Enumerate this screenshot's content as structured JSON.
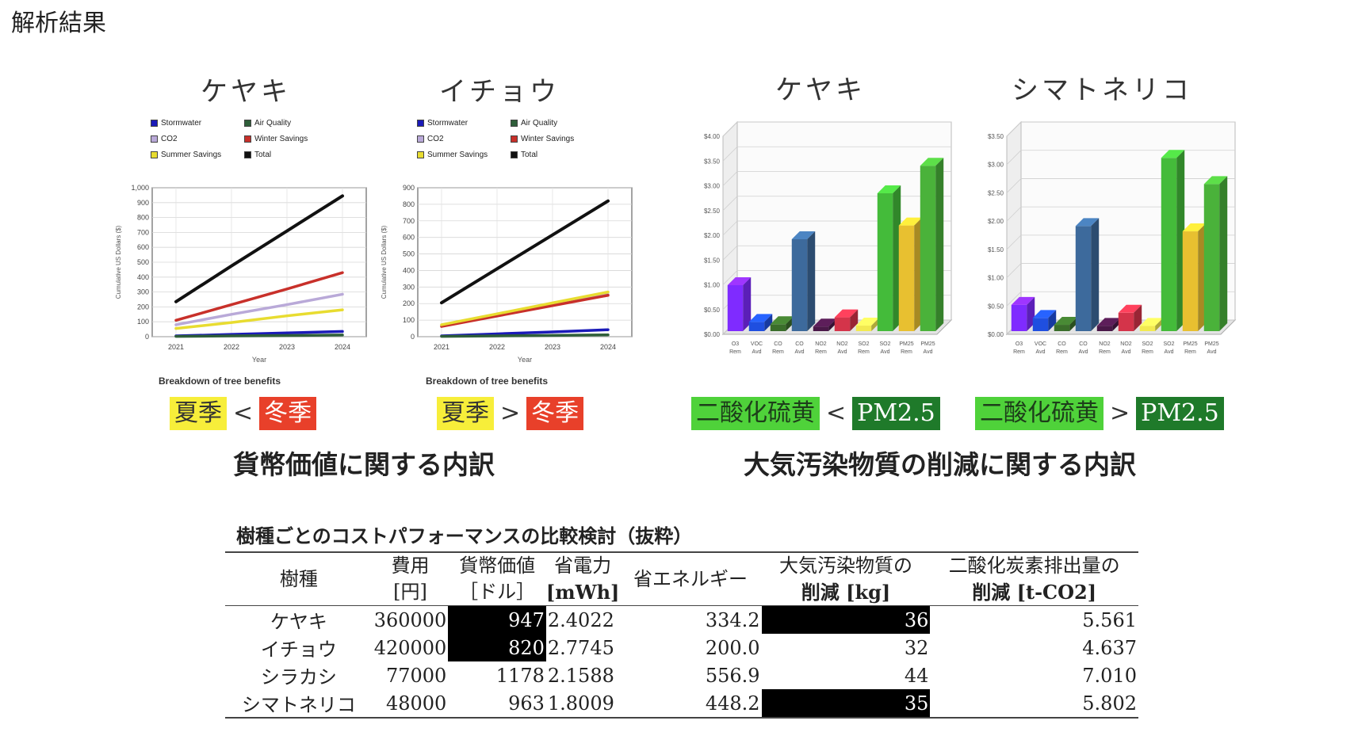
{
  "slide": {
    "title": "解析結果"
  },
  "line_legend": [
    {
      "label": "Stormwater",
      "color": "#1a1ab8"
    },
    {
      "label": "Air Quality",
      "color": "#2f5f3a"
    },
    {
      "label": "CO2",
      "color": "#b9a9d8"
    },
    {
      "label": "Winter Savings",
      "color": "#c8302a"
    },
    {
      "label": "Summer Savings",
      "color": "#e8dc30"
    },
    {
      "label": "Total",
      "color": "#111111"
    }
  ],
  "chart_data": [
    {
      "type": "line",
      "title": "ケヤキ",
      "xlabel": "Year",
      "ylabel": "Cumulative US Dollars ($)",
      "caption": "Breakdown of tree benefits",
      "x": [
        "2021",
        "2022",
        "2023",
        "2024"
      ],
      "ylim": [
        0,
        1000
      ],
      "yticks": [
        "0",
        "100",
        "200",
        "300",
        "400",
        "500",
        "600",
        "700",
        "800",
        "900",
        "1,000"
      ],
      "grid": true,
      "series": [
        {
          "name": "Stormwater",
          "color": "#1a1ab8",
          "values": [
            5,
            15,
            25,
            35
          ]
        },
        {
          "name": "Air Quality",
          "color": "#2f5f3a",
          "values": [
            2,
            5,
            8,
            11
          ]
        },
        {
          "name": "CO2",
          "color": "#b9a9d8",
          "values": [
            80,
            150,
            215,
            285
          ]
        },
        {
          "name": "Winter Savings",
          "color": "#c8302a",
          "values": [
            110,
            215,
            320,
            430
          ]
        },
        {
          "name": "Summer Savings",
          "color": "#e8dc30",
          "values": [
            55,
            95,
            140,
            180
          ]
        },
        {
          "name": "Total",
          "color": "#111111",
          "values": [
            235,
            475,
            710,
            945
          ]
        }
      ]
    },
    {
      "type": "line",
      "title": "イチョウ",
      "xlabel": "Year",
      "ylabel": "Cumulative US Dollars ($)",
      "caption": "Breakdown of tree benefits",
      "x": [
        "2021",
        "2022",
        "2023",
        "2024"
      ],
      "ylim": [
        0,
        900
      ],
      "yticks": [
        "0",
        "100",
        "200",
        "300",
        "400",
        "500",
        "600",
        "700",
        "800",
        "900"
      ],
      "grid": true,
      "series": [
        {
          "name": "Stormwater",
          "color": "#1a1ab8",
          "values": [
            5,
            17,
            29,
            42
          ]
        },
        {
          "name": "Air Quality",
          "color": "#2f5f3a",
          "values": [
            2,
            5,
            8,
            11
          ]
        },
        {
          "name": "CO2",
          "color": "#b9a9d8",
          "values": [
            65,
            130,
            195,
            255
          ]
        },
        {
          "name": "Winter Savings",
          "color": "#c8302a",
          "values": [
            62,
            125,
            188,
            250
          ]
        },
        {
          "name": "Summer Savings",
          "color": "#e8dc30",
          "values": [
            72,
            138,
            204,
            270
          ]
        },
        {
          "name": "Total",
          "color": "#111111",
          "values": [
            205,
            410,
            615,
            820
          ]
        }
      ]
    },
    {
      "type": "bar",
      "title": "ケヤキ",
      "categories": [
        "O3 Rem",
        "VOC Avd",
        "CO Rem",
        "CO Avd",
        "NO2 Rem",
        "NO2 Avd",
        "SO2 Rem",
        "SO2 Avd",
        "PM25 Rem",
        "PM25 Avd"
      ],
      "values": [
        1.0,
        0.2,
        0.15,
        2.0,
        0.1,
        0.3,
        0.12,
        3.0,
        2.3,
        3.6
      ],
      "colors": [
        "#7f2bff",
        "#1f4fe0",
        "#3a6e2a",
        "#3d6a9c",
        "#4a1848",
        "#d4344a",
        "#f2ea50",
        "#44bb3a",
        "#e8c030",
        "#4ab23a"
      ],
      "ylim": [
        0,
        4.0
      ],
      "yticks": [
        "$0.00",
        "$0.50",
        "$1.00",
        "$1.50",
        "$2.00",
        "$2.50",
        "$3.00",
        "$3.50",
        "$4.00"
      ]
    },
    {
      "type": "bar",
      "title": "シマトネリコ",
      "categories": [
        "O3 Rem",
        "VOC Avd",
        "CO Rem",
        "CO Avd",
        "NO2 Rem",
        "NO2 Avd",
        "SO2 Rem",
        "SO2 Avd",
        "PM25 Rem",
        "PM25 Avd"
      ],
      "values": [
        0.5,
        0.25,
        0.12,
        2.0,
        0.1,
        0.35,
        0.1,
        3.3,
        1.9,
        2.8
      ],
      "colors": [
        "#7f2bff",
        "#1f4fe0",
        "#3a6e2a",
        "#3d6a9c",
        "#4a1848",
        "#d4344a",
        "#f2ea50",
        "#44bb3a",
        "#e8c030",
        "#4ab23a"
      ],
      "ylim": [
        0,
        3.5
      ],
      "yticks": [
        "$0.00",
        "$0.50",
        "$1.00",
        "$1.50",
        "$2.00",
        "$2.50",
        "$3.00",
        "$3.50"
      ]
    }
  ],
  "comparisons": [
    {
      "left": "夏季",
      "op": "<",
      "right": "冬季",
      "left_bg": "#f7ee3a",
      "left_fg": "#333333",
      "right_bg": "#e8402a",
      "right_fg": "#ffffff"
    },
    {
      "left": "夏季",
      "op": ">",
      "right": "冬季",
      "left_bg": "#f7ee3a",
      "left_fg": "#333333",
      "right_bg": "#e8402a",
      "right_fg": "#ffffff"
    },
    {
      "left": "二酸化硫黄",
      "op": "<",
      "right": "PM2.5",
      "left_bg": "#4fd23a",
      "left_fg": "#1d3d1a",
      "right_bg": "#1f7a2a",
      "right_fg": "#ffffff"
    },
    {
      "left": "二酸化硫黄",
      "op": ">",
      "right": "PM2.5",
      "left_bg": "#4fd23a",
      "left_fg": "#1d3d1a",
      "right_bg": "#1f7a2a",
      "right_fg": "#ffffff"
    }
  ],
  "sections": {
    "monetary": "貨幣価値に関する内訳",
    "pollutants": "大気汚染物質の削減に関する内訳"
  },
  "table": {
    "title": "樹種ごとのコストパフォーマンスの比較検討（抜粋）",
    "headers": [
      {
        "l1": "樹種",
        "l2": ""
      },
      {
        "l1": "費用",
        "l2": "[円]"
      },
      {
        "l1": "貨幣価値",
        "l2": "［ドル］"
      },
      {
        "l1": "省電力",
        "l2": "[mWh]"
      },
      {
        "l1": "省エネルギー",
        "l2": ""
      },
      {
        "l1": "大気汚染物質の",
        "l2": "削減 [kg]"
      },
      {
        "l1": "二酸化炭素排出量の",
        "l2": "削減 [t-CO2]"
      }
    ],
    "rows": [
      {
        "species": "ケヤキ",
        "cost": "360000",
        "value": "947",
        "power": "2.4022",
        "energy": "334.2",
        "pollution": "36",
        "co2": "5.561",
        "hl_value": true,
        "hl_pollution": true
      },
      {
        "species": "イチョウ",
        "cost": "420000",
        "value": "820",
        "power": "2.7745",
        "energy": "200.0",
        "pollution": "32",
        "co2": "4.637",
        "hl_value": true,
        "hl_pollution": false
      },
      {
        "species": "シラカシ",
        "cost": "77000",
        "value": "1178",
        "power": "2.1588",
        "energy": "556.9",
        "pollution": "44",
        "co2": "7.010",
        "hl_value": false,
        "hl_pollution": false
      },
      {
        "species": "シマトネリコ",
        "cost": "48000",
        "value": "963",
        "power": "1.8009",
        "energy": "448.2",
        "pollution": "35",
        "co2": "5.802",
        "hl_value": false,
        "hl_pollution": true
      }
    ]
  }
}
